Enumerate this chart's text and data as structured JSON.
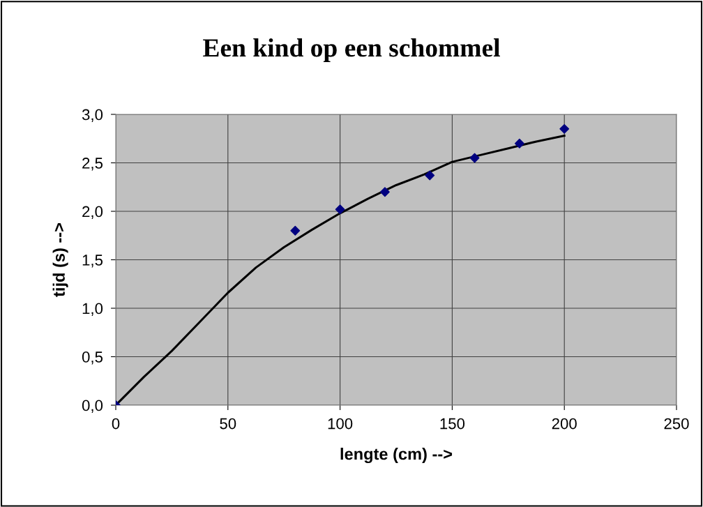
{
  "chart_data": {
    "type": "scatter",
    "title": "Een kind op een schommel",
    "xlabel": "lengte (cm) -->",
    "ylabel": "tijd (s) -->",
    "series": [
      {
        "color": "#000080",
        "marker": "diamond",
        "x": [
          0,
          80,
          100,
          120,
          140,
          160,
          180,
          200
        ],
        "values": [
          0,
          1.8,
          2.02,
          2.2,
          2.37,
          2.55,
          2.7,
          2.85
        ]
      },
      {
        "type": "line",
        "color": "#000000",
        "marker": "none",
        "line_style": "solid",
        "x": [
          0,
          12.5,
          25,
          37.5,
          50,
          62.5,
          75,
          87.5,
          100,
          112.5,
          125,
          137.5,
          150,
          162.5,
          175,
          187.5,
          200
        ],
        "values": [
          0,
          0.29,
          0.56,
          0.86,
          1.16,
          1.42,
          1.63,
          1.81,
          1.98,
          2.13,
          2.27,
          2.38,
          2.51,
          2.58,
          2.65,
          2.72,
          2.78
        ]
      }
    ],
    "xlim": [
      0,
      250
    ],
    "xticks": [
      0,
      50,
      100,
      150,
      200,
      250
    ],
    "ylim": [
      0,
      3.0
    ],
    "yticks": [
      {
        "value": 0,
        "label": "0,0"
      },
      {
        "value": 0.5,
        "label": "0,5"
      },
      {
        "value": 1.0,
        "label": "1,0"
      },
      {
        "value": 1.5,
        "label": "1,5"
      },
      {
        "value": 2.0,
        "label": "2,0"
      },
      {
        "value": 2.5,
        "label": "2,5"
      },
      {
        "value": 3.0,
        "label": "3,0"
      }
    ],
    "grid": true,
    "legend": false
  }
}
